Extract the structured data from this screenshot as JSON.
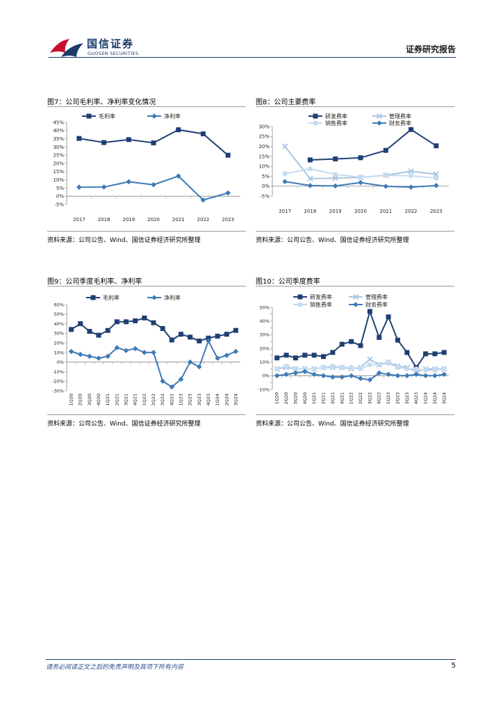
{
  "header": {
    "brand_cn": "国信证券",
    "brand_en": "GUOSEN SECURITIES",
    "report_type": "证券研究报告"
  },
  "figures": [
    {
      "title": "图7：公司毛利率、净利率变化情况",
      "source": "资料来源：公司公告、Wind、国信证券经济研究所整理"
    },
    {
      "title": "图8：公司主要费率",
      "source": "资料来源：公司公告、Wind、国信证券经济研究所整理"
    },
    {
      "title": "图9：公司季度毛利率、净利率",
      "source": "资料来源：公司公告、Wind、国信证券经济研究所整理"
    },
    {
      "title": "图10：公司季度费率",
      "source": "资料来源：公司公告、Wind、国信证券经济研究所整理"
    }
  ],
  "footer": {
    "disclaimer": "请务必阅读正文之后的免责声明及其项下所有内容",
    "page_number": "5"
  },
  "colors": {
    "dark": "#1f3f73",
    "mid": "#3d7ab8",
    "light": "#a9c4e2",
    "pale": "#c6dbef"
  },
  "chart_data": [
    {
      "type": "line",
      "categories": [
        "2017",
        "2018",
        "2019",
        "2020",
        "2021",
        "2022",
        "2023"
      ],
      "ylim": [
        -5,
        45
      ],
      "yticks": [
        -5,
        0,
        5,
        10,
        15,
        20,
        25,
        30,
        35,
        40,
        45
      ],
      "ytick_labels": [
        "-5%",
        "0%",
        "5%",
        "10%",
        "15%",
        "20%",
        "25%",
        "30%",
        "35%",
        "40%",
        "45%"
      ],
      "legend_position": "top",
      "series": [
        {
          "name": "毛利率",
          "marker": "square",
          "color": "#1f3f73",
          "values": [
            35.2,
            32.7,
            34.5,
            32.5,
            40.5,
            38.0,
            25.0
          ]
        },
        {
          "name": "净利率",
          "marker": "diamond",
          "color": "#3d7ab8",
          "values": [
            5.5,
            5.6,
            8.8,
            7.0,
            12.3,
            -2.3,
            2.0
          ]
        }
      ]
    },
    {
      "type": "line",
      "categories": [
        "2017",
        "2018",
        "2019",
        "2020",
        "2021",
        "2022",
        "2023"
      ],
      "ylim": [
        -5,
        30
      ],
      "yticks": [
        -5,
        0,
        5,
        10,
        15,
        20,
        25,
        30
      ],
      "ytick_labels": [
        "-5%",
        "0%",
        "5%",
        "10%",
        "15%",
        "20%",
        "25%",
        "30%"
      ],
      "legend_position": "top",
      "series": [
        {
          "name": "研发费率",
          "marker": "square",
          "color": "#1f3f73",
          "values": [
            null,
            13.2,
            13.7,
            14.3,
            18.0,
            28.5,
            20.3
          ]
        },
        {
          "name": "管理费率",
          "marker": "cross",
          "color": "#a9c4e2",
          "values": [
            20.0,
            3.8,
            4.0,
            4.4,
            5.5,
            7.5,
            6.0
          ]
        },
        {
          "name": "销售费率",
          "marker": "circle",
          "color": "#c6dbef",
          "values": [
            6.3,
            8.7,
            6.0,
            4.5,
            5.5,
            5.2,
            4.0
          ]
        },
        {
          "name": "财务费率",
          "marker": "diamond",
          "color": "#3d7ab8",
          "values": [
            2.3,
            0.3,
            0.1,
            1.8,
            -0.1,
            -0.5,
            0.3
          ]
        }
      ]
    },
    {
      "type": "line",
      "categories": [
        "1Q20",
        "2Q20",
        "3Q20",
        "4Q20",
        "1Q21",
        "2Q21",
        "3Q21",
        "4Q21",
        "1Q22",
        "2Q22",
        "3Q22",
        "4Q22",
        "1Q23",
        "2Q23",
        "3Q23",
        "4Q23",
        "1Q24",
        "2Q24",
        "3Q24"
      ],
      "ylim": [
        -30,
        60
      ],
      "yticks": [
        -30,
        -20,
        -10,
        0,
        10,
        20,
        30,
        40,
        50,
        60
      ],
      "ytick_labels": [
        "-30%",
        "-20%",
        "-10%",
        "0%",
        "10%",
        "20%",
        "30%",
        "40%",
        "50%",
        "60%"
      ],
      "legend_position": "top",
      "series": [
        {
          "name": "毛利率",
          "marker": "square",
          "color": "#1f3f73",
          "values": [
            34,
            40,
            32,
            28,
            33,
            42,
            42,
            43,
            46,
            41,
            35,
            23,
            29,
            26,
            22,
            25,
            27,
            29,
            33
          ]
        },
        {
          "name": "净利率",
          "marker": "diamond",
          "color": "#3d7ab8",
          "values": [
            11,
            8,
            6,
            4,
            6,
            15,
            12,
            14,
            10,
            10,
            -20,
            -26,
            -18,
            0,
            -5,
            22,
            4,
            7,
            11
          ]
        }
      ]
    },
    {
      "type": "line",
      "categories": [
        "1Q20",
        "2Q20",
        "3Q20",
        "4Q20",
        "1Q21",
        "2Q21",
        "3Q21",
        "4Q21",
        "1Q22",
        "2Q22",
        "3Q22",
        "4Q22",
        "1Q23",
        "2Q23",
        "3Q23",
        "4Q23",
        "1Q24",
        "2Q24",
        "3Q24"
      ],
      "ylim": [
        -10,
        50
      ],
      "yticks": [
        -10,
        -5,
        0,
        5,
        10,
        15,
        20,
        25,
        30,
        35,
        40,
        45,
        50
      ],
      "ytick_labels": [
        "-10%",
        "",
        "0%",
        "",
        "10%",
        "",
        "20%",
        "",
        "30%",
        "",
        "40%",
        "",
        "50%"
      ],
      "legend_position": "top",
      "series": [
        {
          "name": "研发费率",
          "marker": "square",
          "color": "#1f3f73",
          "values": [
            13,
            15,
            13,
            15,
            15,
            14,
            17,
            23,
            25,
            22,
            47,
            28,
            43,
            26,
            17,
            6,
            16,
            16,
            17
          ]
        },
        {
          "name": "管理费率",
          "marker": "cross",
          "color": "#a9c4e2",
          "values": [
            5,
            6,
            5,
            5,
            5,
            6,
            6,
            6,
            5,
            6,
            12,
            8,
            10,
            7,
            6,
            3,
            5,
            5,
            5
          ]
        },
        {
          "name": "销售费率",
          "marker": "circle",
          "color": "#c6dbef",
          "values": [
            5,
            7,
            5,
            5,
            5,
            6,
            7,
            6,
            6,
            5,
            8,
            8,
            9,
            6,
            5,
            5,
            4,
            4,
            5
          ]
        },
        {
          "name": "财务费率",
          "marker": "diamond",
          "color": "#3d7ab8",
          "values": [
            0,
            1,
            2,
            3,
            1,
            0,
            -1,
            -1,
            0,
            -2,
            -3,
            2,
            1,
            0,
            0,
            1,
            0,
            0,
            1
          ]
        }
      ]
    }
  ]
}
